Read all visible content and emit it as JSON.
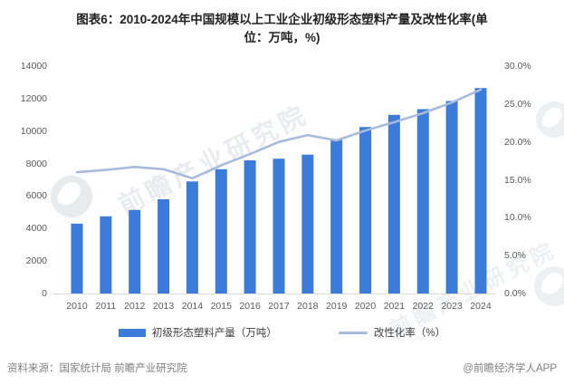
{
  "title": {
    "line1": "图表6：2010-2024年中国规模以上工业企业初级形态塑料产量及改性化率(单",
    "line2": "位：万吨，%)"
  },
  "chart_data": {
    "type": "bar+line",
    "categories": [
      "2010",
      "2011",
      "2012",
      "2013",
      "2014",
      "2015",
      "2016",
      "2017",
      "2018",
      "2019",
      "2020",
      "2021",
      "2022",
      "2023",
      "2024"
    ],
    "series": [
      {
        "name": "初级形态塑料产量（万吨）",
        "type": "bar",
        "axis": "left",
        "color": "#3b7cdb",
        "values": [
          4300,
          4750,
          5150,
          5800,
          6900,
          7650,
          8200,
          8300,
          8550,
          9450,
          10250,
          11000,
          11350,
          11850,
          12650
        ]
      },
      {
        "name": "改性化率（%）",
        "type": "line",
        "axis": "right",
        "color": "#a9bbdc",
        "values": [
          16.0,
          16.3,
          16.7,
          16.4,
          15.2,
          16.9,
          18.4,
          20.0,
          20.9,
          20.2,
          21.5,
          22.6,
          23.8,
          25.2,
          26.9
        ]
      }
    ],
    "left_axis": {
      "min": 0,
      "max": 14000,
      "step": 2000,
      "tick_labels": [
        "14000",
        "12000",
        "10000",
        "8000",
        "6000",
        "4000",
        "2000",
        "0"
      ]
    },
    "right_axis": {
      "min": 0,
      "max": 30,
      "step": 5,
      "tick_labels": [
        "30.0%",
        "25.0%",
        "20.0%",
        "15.0%",
        "10.0%",
        "5.0%",
        "0.0%"
      ]
    },
    "grid": false,
    "legend_position": "bottom"
  },
  "legend": {
    "bar_label": "初级形态塑料产量（万吨）",
    "line_label": "改性化率（%）"
  },
  "footer": {
    "source": "资料来源：国家统计局 前瞻产业研究院",
    "brand": "@前瞻经济学人APP"
  },
  "watermark": {
    "text": "前瞻产业研究院"
  },
  "colors": {
    "bar": "#3b7cdb",
    "line": "#a9bbdc",
    "axis_text": "#595959",
    "baseline": "#d9d9d9",
    "title_text": "#222222",
    "footer_text": "#7f7f7f"
  }
}
